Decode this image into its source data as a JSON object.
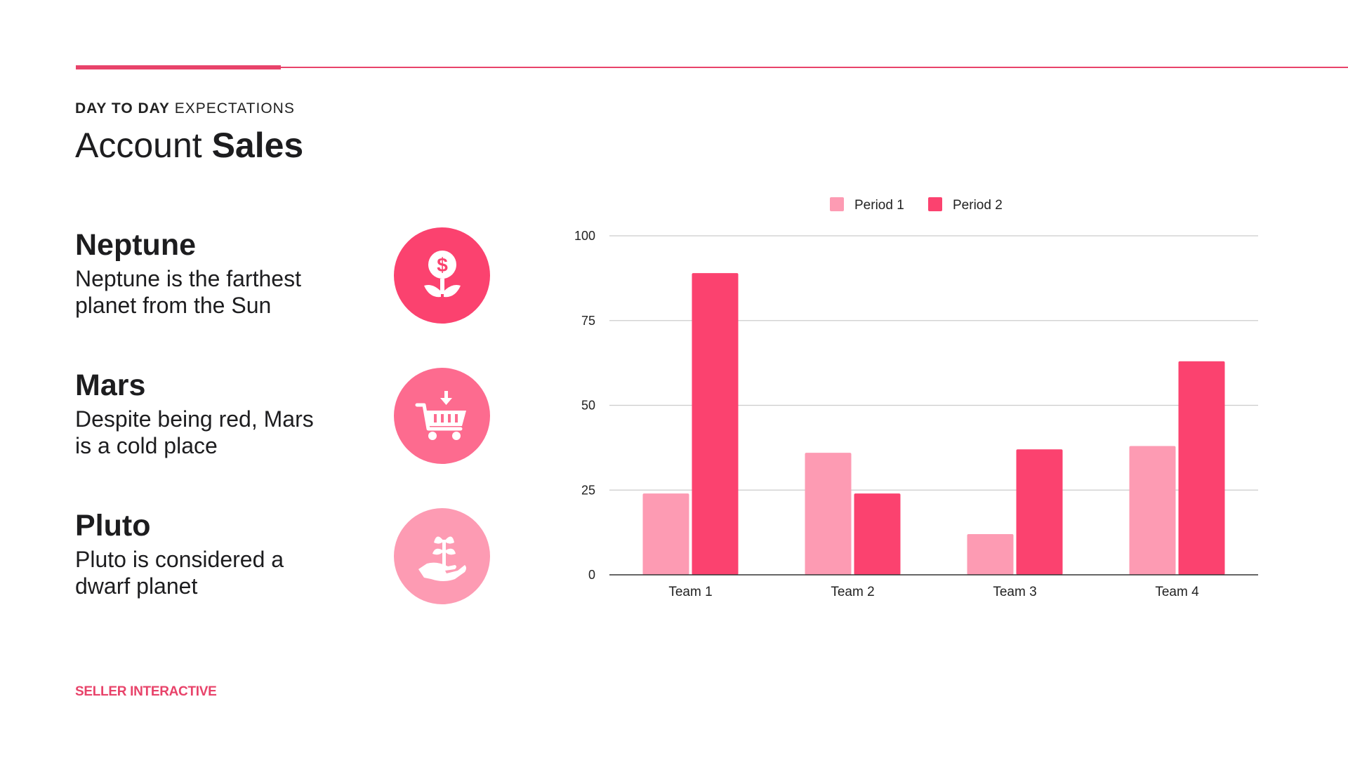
{
  "header": {
    "eyebrow_bold": "DAY TO DAY",
    "eyebrow_rest": " EXPECTATIONS",
    "title_light": "Account ",
    "title_bold": "Sales"
  },
  "items": [
    {
      "heading": "Neptune",
      "line1": "Neptune is the farthest",
      "line2": "planet from the Sun",
      "icon": "money-flower-icon"
    },
    {
      "heading": "Mars",
      "line1": "Despite being red, Mars",
      "line2": "is a cold place",
      "icon": "shopping-cart-icon"
    },
    {
      "heading": "Pluto",
      "line1": "Pluto is considered a",
      "line2": "dwarf planet",
      "icon": "hand-sprout-icon"
    }
  ],
  "footer": {
    "brand": "SELLER INTERACTIVE"
  },
  "colors": {
    "accent": "#e8436a",
    "period1": "#fd9bb3",
    "period2": "#fb426f"
  },
  "chart_data": {
    "type": "bar",
    "categories": [
      "Team 1",
      "Team 2",
      "Team 3",
      "Team 4"
    ],
    "series": [
      {
        "name": "Period 1",
        "values": [
          24,
          36,
          12,
          38
        ]
      },
      {
        "name": "Period 2",
        "values": [
          89,
          24,
          37,
          63
        ]
      }
    ],
    "ylim": [
      0,
      100
    ],
    "yticks": [
      0,
      25,
      50,
      75,
      100
    ],
    "grid": true,
    "legend": "top"
  }
}
